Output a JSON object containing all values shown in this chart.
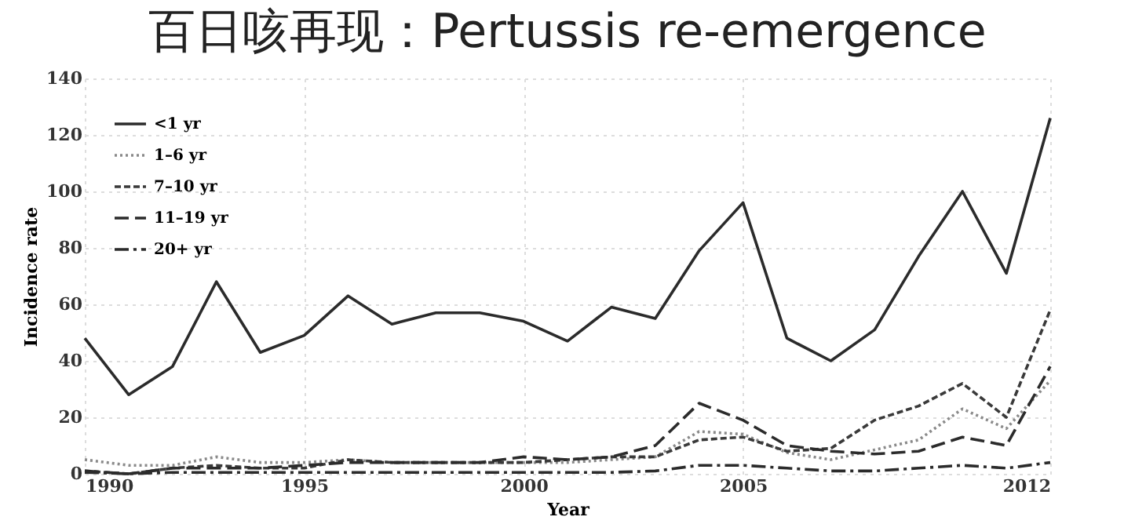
{
  "chart_data": {
    "type": "line",
    "title": "百日咳再现：Pertussis re-emergence",
    "xlabel": "Year",
    "ylabel": "Incidence rate",
    "x": [
      1990,
      1991,
      1992,
      1993,
      1994,
      1995,
      1996,
      1997,
      1998,
      1999,
      2000,
      2001,
      2002,
      2003,
      2004,
      2005,
      2006,
      2007,
      2008,
      2009,
      2010,
      2011,
      2012
    ],
    "series": [
      {
        "name": "<1 yr",
        "color": "#2b2b2b",
        "line_style": "solid",
        "values": [
          48,
          28,
          38,
          68,
          43,
          49,
          63,
          53,
          57,
          57,
          54,
          47,
          59,
          55,
          79,
          96,
          48,
          40,
          51,
          77,
          100,
          71,
          126
        ]
      },
      {
        "name": "1–6 yr",
        "color": "#8a8a8a",
        "line_style": "dotted",
        "values": [
          5,
          3,
          3,
          6,
          4,
          4,
          5,
          4,
          4,
          4,
          4,
          4,
          5,
          6,
          15,
          14,
          7.5,
          5,
          8.5,
          12,
          23,
          16,
          33
        ]
      },
      {
        "name": "7–10 yr",
        "color": "#3a3a3a",
        "line_style": "dashed",
        "values": [
          1,
          0,
          2,
          3,
          2,
          2,
          5,
          4,
          4,
          4,
          4,
          5,
          6,
          6,
          12,
          13,
          8,
          9,
          19,
          24,
          32,
          20,
          58
        ]
      },
      {
        "name": "11–19 yr",
        "color": "#2b2b2b",
        "line_style": "longdash",
        "values": [
          1,
          0,
          2,
          2,
          2,
          3,
          4,
          4,
          4,
          4,
          6,
          5,
          6,
          10,
          25,
          19,
          10,
          8,
          7,
          8,
          13,
          10,
          38
        ]
      },
      {
        "name": "20+ yr",
        "color": "#2b2b2b",
        "line_style": "dashdot",
        "values": [
          0.5,
          0,
          0.5,
          0.5,
          0.5,
          0.5,
          0.5,
          0.5,
          0.5,
          0.5,
          0.5,
          0.5,
          0.5,
          1,
          3,
          3,
          2,
          1,
          1,
          2,
          3,
          2,
          4
        ]
      }
    ],
    "xlim": [
      1990,
      2012
    ],
    "xticks": [
      1990,
      1995,
      2000,
      2005,
      2012
    ],
    "ylim": [
      0,
      140
    ],
    "yticks": [
      0,
      20,
      40,
      60,
      80,
      100,
      120,
      140
    ],
    "grid": true,
    "legend": "top left",
    "marker": "none"
  }
}
